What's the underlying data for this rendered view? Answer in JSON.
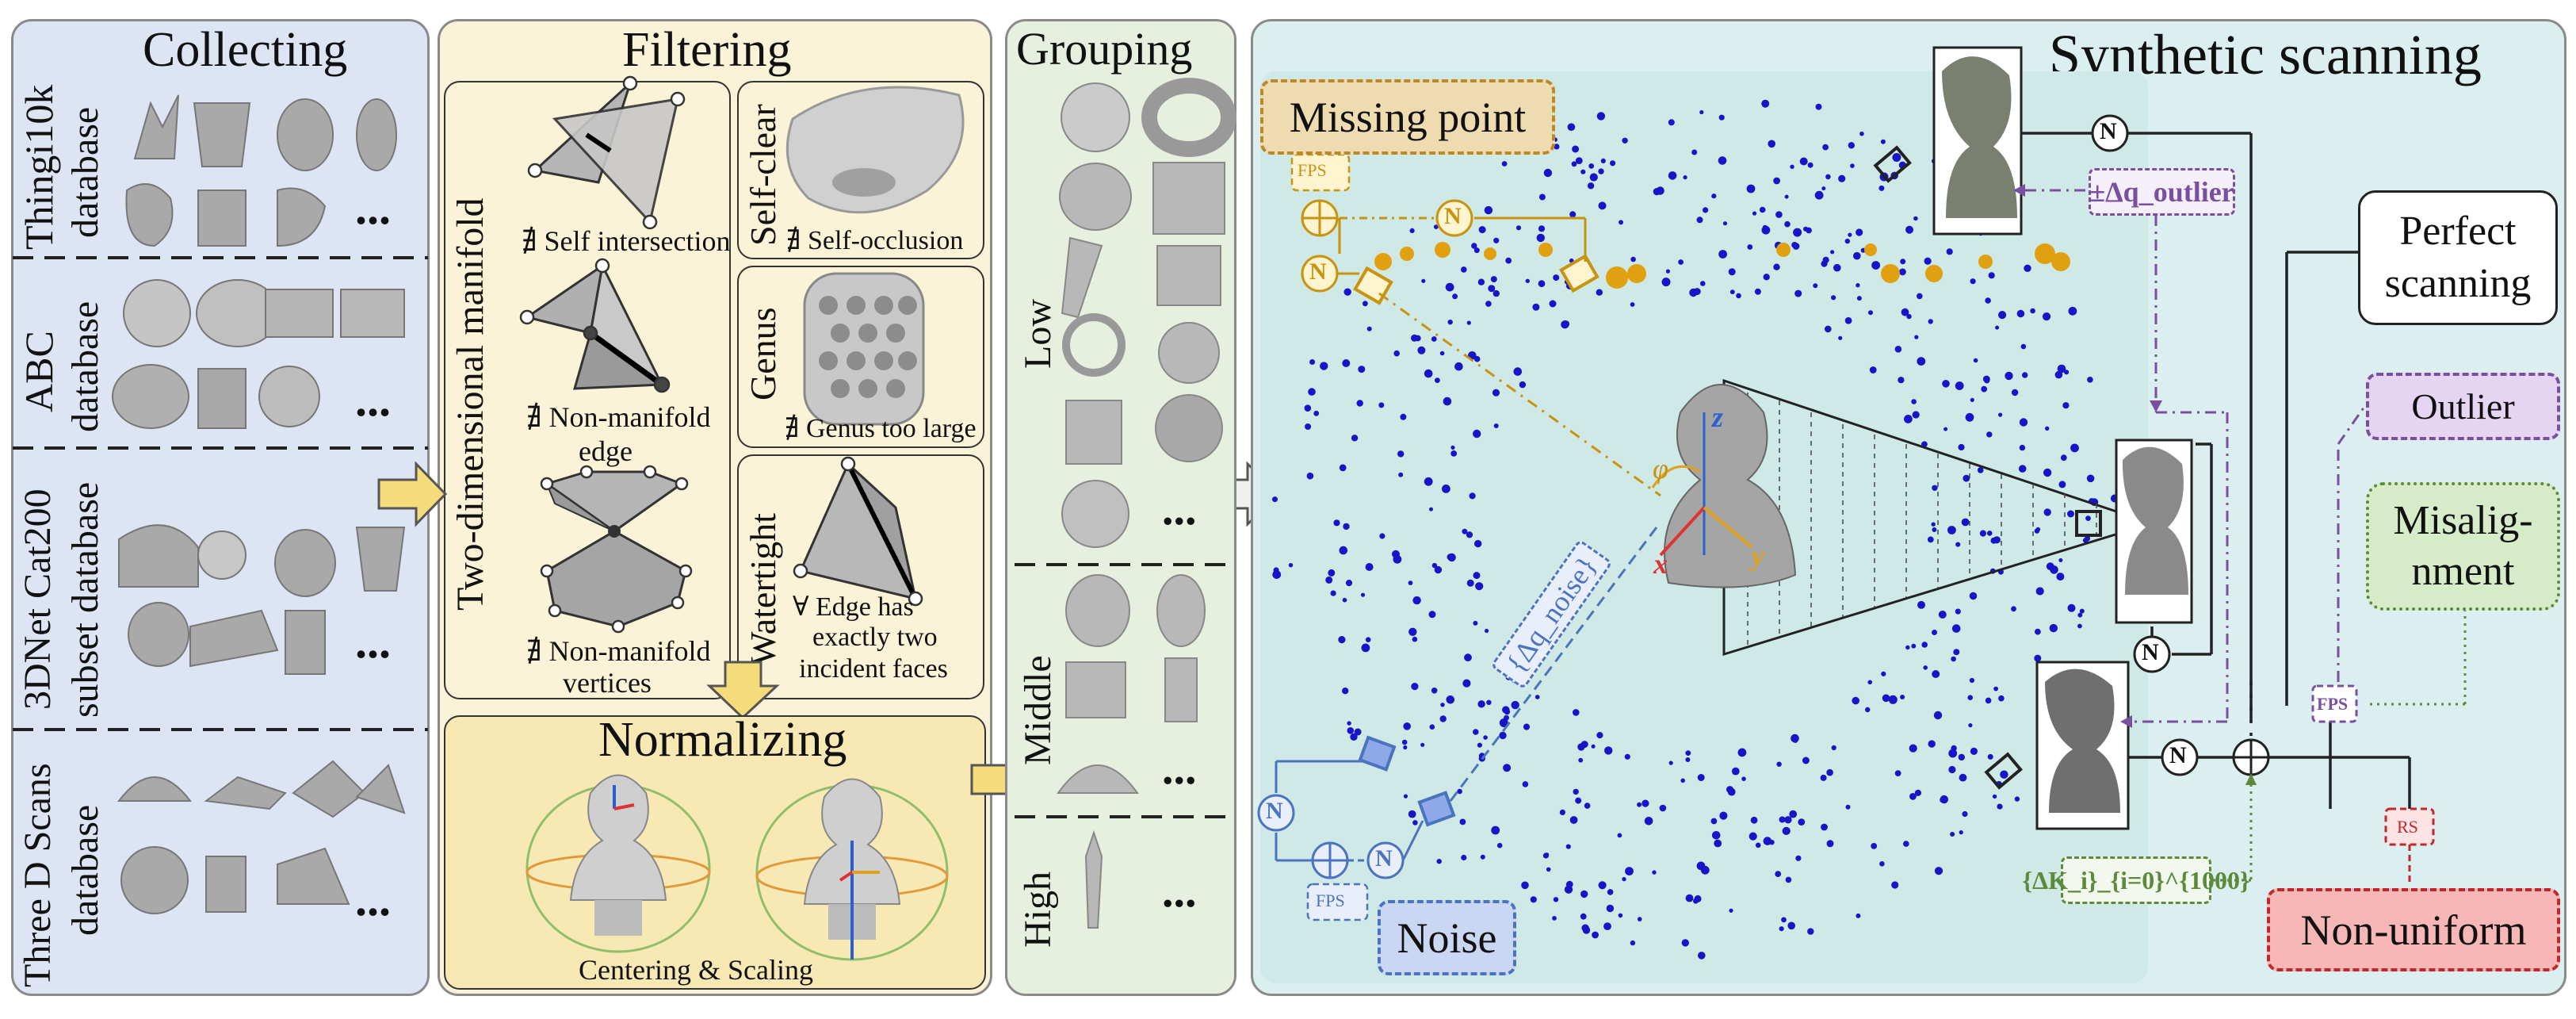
{
  "collecting": {
    "title": "Collecting",
    "sources": [
      {
        "name": "Thingi10k",
        "sub": "database"
      },
      {
        "name": "ABC",
        "sub": "database"
      },
      {
        "name": "3DNet Cat200",
        "sub": "subset database"
      },
      {
        "name": "Three D Scans",
        "sub": "database"
      }
    ],
    "ellipsis": "..."
  },
  "filtering": {
    "title": "Filtering",
    "manifold_label": "Two-dimensional manifold",
    "self_intersection": "∄ Self intersection",
    "nonmanifold_edge_1": "∄ Non-manifold",
    "nonmanifold_edge_2": "edge",
    "nonmanifold_vert_1": "∄ Non-manifold",
    "nonmanifold_vert_2": "vertices",
    "selfclear_label": "Self-clear",
    "selfclear_caption": "∄ Self-occlusion",
    "genus_label": "Genus",
    "genus_caption": "∄ Genus too large",
    "watertight_label": "Watertight",
    "watertight_1": "∀ Edge has",
    "watertight_2": "exactly two",
    "watertight_3": "incident faces"
  },
  "normalizing": {
    "title": "Normalizing",
    "caption": "Centering & Scaling"
  },
  "grouping": {
    "title": "Grouping",
    "levels": [
      "Low",
      "Middle",
      "High"
    ],
    "ellipsis": "..."
  },
  "scanning": {
    "title": "Synthetic scanning",
    "missing_point": "Missing point",
    "noise": "Noise",
    "noise_delta": "{Δq_noise}",
    "outlier_delta": "±Δq_outlier",
    "fps": "FPS",
    "rs": "RS",
    "n_symbol": "N",
    "perfect_1": "Perfect",
    "perfect_2": "scanning",
    "outlier": "Outlier",
    "misalign_1": "Misalig-",
    "misalign_2": "nment",
    "nonuniform": "Non-uniform",
    "k_set": "{ΔK_i}_{i=0}^{1000}",
    "axes": {
      "x": "x",
      "y": "y",
      "z": "z",
      "phi": "φ"
    }
  },
  "colors": {
    "collect_bg": "#dde5f4",
    "filter_bg": "#fbf3d7",
    "group_bg": "#e7efdf",
    "scan_bg": "#dceff0",
    "orange": "#c8930f",
    "blue": "#4b74c0",
    "purple": "#7a4fa0",
    "green": "#5b8a3a",
    "red": "#c0282e",
    "points": "#1616c8"
  }
}
